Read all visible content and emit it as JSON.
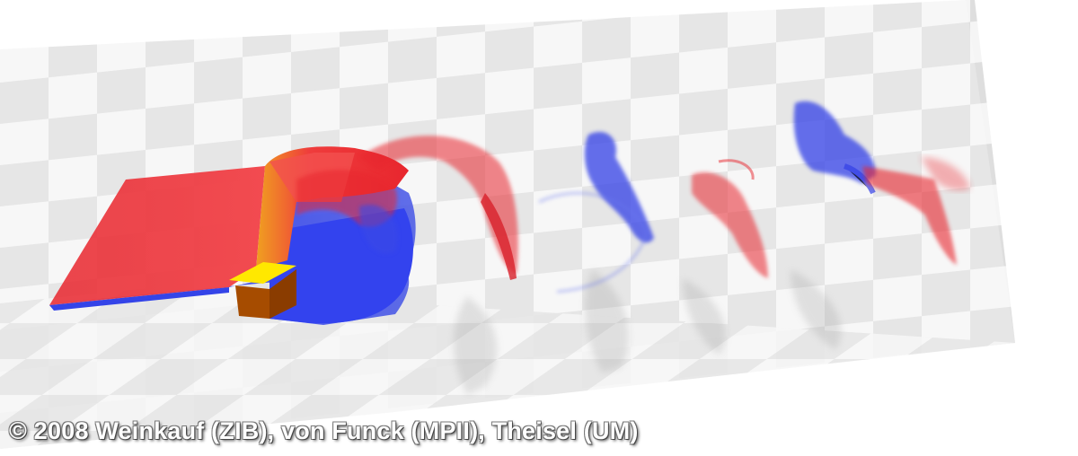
{
  "image": {
    "subject": "3D flow visualization of vortex shedding behind a cuboid over checkerboard floor and back wall",
    "colors": {
      "positive_vortex": "#e8262e",
      "negative_vortex": "#2f3ee6",
      "cuboid_top": "#ffe600",
      "cuboid_front": "#a14a00",
      "checker_light": "#f4f4f4",
      "checker_dark": "#dedede"
    }
  },
  "caption": {
    "copyright_text": "© 2008 Weinkauf (ZIB), von Funck (MPII), Theisel (UM)"
  }
}
